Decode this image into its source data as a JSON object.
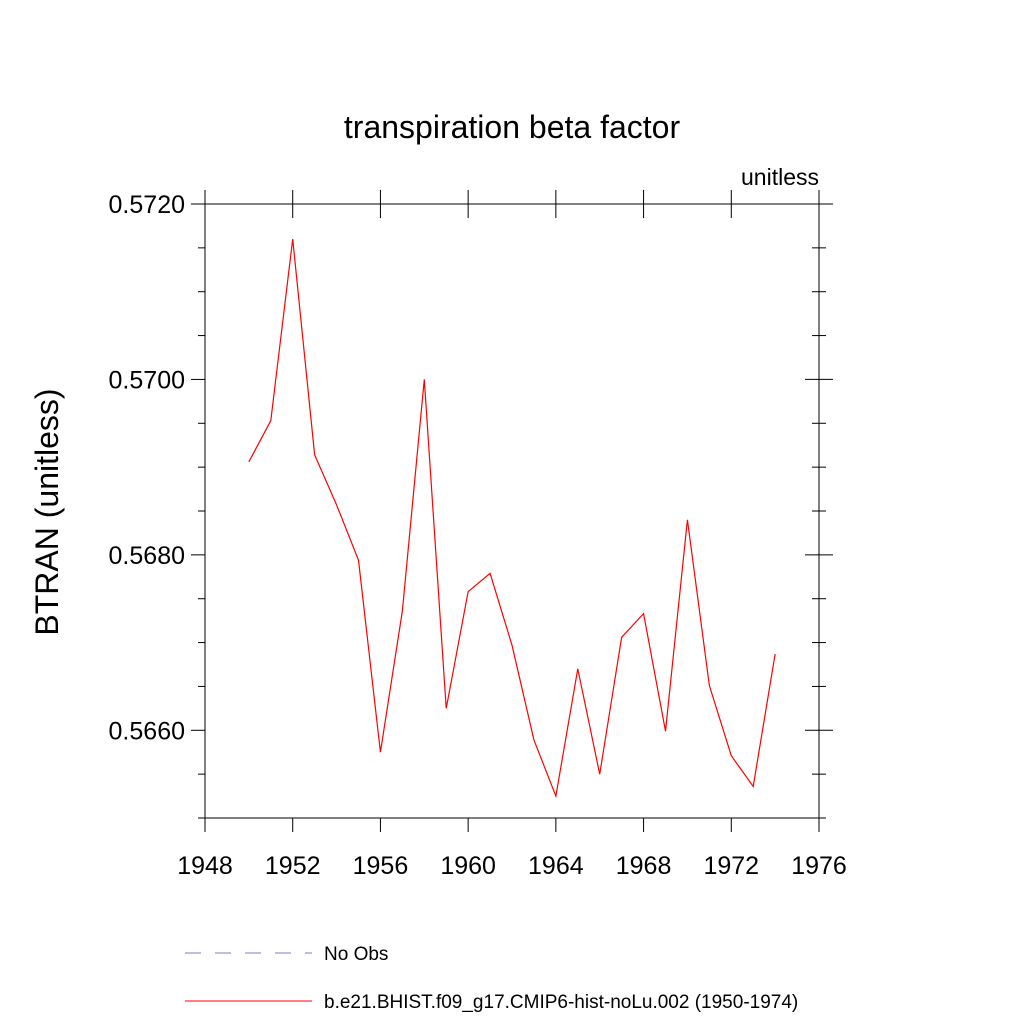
{
  "chart_data": {
    "type": "line",
    "title": "transpiration beta factor",
    "subtitle_right": "unitless",
    "ylabel": "BTRAN  (unitless)",
    "x": [
      1950,
      1951,
      1952,
      1953,
      1954,
      1955,
      1956,
      1957,
      1958,
      1959,
      1960,
      1961,
      1962,
      1963,
      1964,
      1965,
      1966,
      1967,
      1968,
      1969,
      1970,
      1971,
      1972,
      1973,
      1974
    ],
    "series": [
      {
        "name": "b.e21.BHIST.f09_g17.CMIP6-hist-noLu.002 (1950-1974)",
        "color": "#ff0000",
        "values": [
          0.56906,
          0.56953,
          0.5716,
          0.56914,
          0.56857,
          0.56794,
          0.56575,
          0.56736,
          0.57,
          0.56625,
          0.56758,
          0.56779,
          0.56697,
          0.56589,
          0.56525,
          0.5667,
          0.5655,
          0.56706,
          0.56733,
          0.56599,
          0.5684,
          0.56651,
          0.56571,
          0.56536,
          0.56687
        ]
      }
    ],
    "reference_legend": [
      {
        "name": "No Obs",
        "color": "#7b7bd6",
        "dash": true
      }
    ],
    "xlim": [
      1948,
      1976
    ],
    "xticks": [
      1948,
      1952,
      1956,
      1960,
      1964,
      1968,
      1972,
      1976
    ],
    "ylim": [
      0.565,
      0.572
    ],
    "yticks": [
      {
        "value": 0.566,
        "label": "0.5660"
      },
      {
        "value": 0.568,
        "label": "0.5680"
      },
      {
        "value": 0.57,
        "label": "0.5700"
      },
      {
        "value": 0.572,
        "label": "0.5720"
      }
    ],
    "yminor_ticks": [
      0.565,
      0.5655,
      0.5665,
      0.567,
      0.5675,
      0.5685,
      0.569,
      0.5695,
      0.5705,
      0.571,
      0.5715
    ],
    "grid": false
  }
}
